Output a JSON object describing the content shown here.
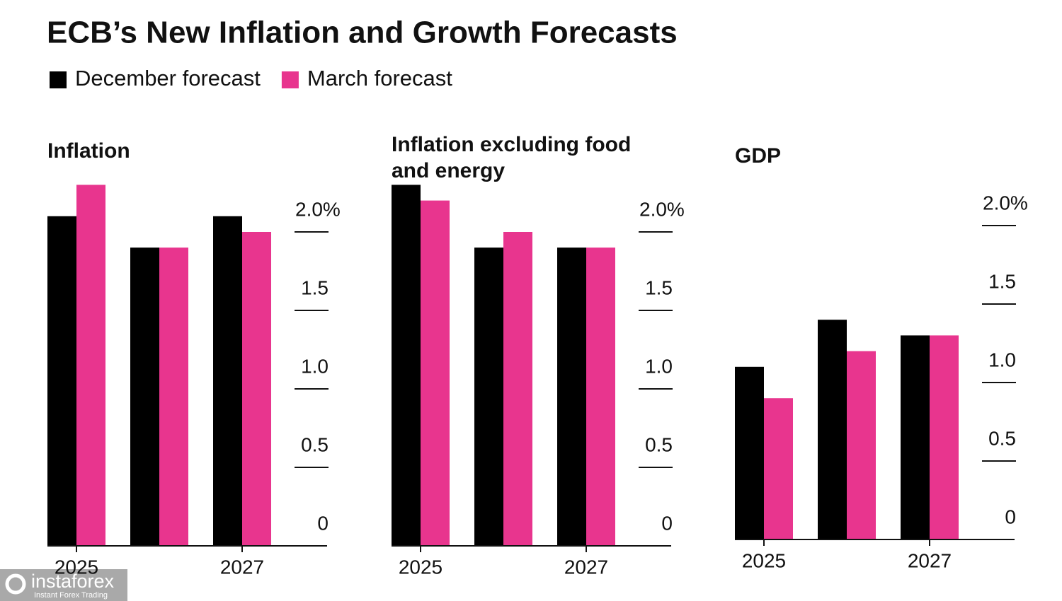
{
  "title": "ECB’s New Inflation and Growth Forecasts",
  "legend": [
    {
      "name": "December forecast",
      "color": "#000000"
    },
    {
      "name": "March forecast",
      "color": "#e8358e"
    }
  ],
  "watermark": {
    "brand": "instaforex",
    "tagline": "Instant Forex Trading"
  },
  "chart_data": [
    {
      "type": "bar",
      "title": "Inflation",
      "categories": [
        "2025",
        null,
        "2027"
      ],
      "series": [
        {
          "values": [
            2.1,
            1.9,
            2.1
          ]
        },
        {
          "values": [
            2.3,
            1.9,
            2.0
          ]
        }
      ],
      "ylim": [
        0,
        2.4
      ],
      "yticks": [
        0,
        0.5,
        {
          "value": 1,
          "label": "1.0"
        },
        1.5,
        {
          "value": 2,
          "label": "2.0%"
        }
      ]
    },
    {
      "type": "bar",
      "title": "Inflation excluding food and energy",
      "categories": [
        "2025",
        null,
        "2027"
      ],
      "series": [
        {
          "values": [
            2.3,
            1.9,
            1.9
          ]
        },
        {
          "values": [
            2.2,
            2.0,
            1.9
          ]
        }
      ],
      "ylim": [
        0,
        2.4
      ],
      "yticks": [
        0,
        0.5,
        {
          "value": 1,
          "label": "1.0"
        },
        1.5,
        {
          "value": 2,
          "label": "2.0%"
        }
      ]
    },
    {
      "type": "bar",
      "title": "GDP",
      "categories": [
        "2025",
        null,
        "2027"
      ],
      "series": [
        {
          "values": [
            1.1,
            1.4,
            1.3
          ]
        },
        {
          "values": [
            0.9,
            1.2,
            1.3
          ]
        }
      ],
      "ylim": [
        0,
        2.4
      ],
      "yticks": [
        0,
        0.5,
        {
          "value": 1,
          "label": "1.0"
        },
        1.5,
        {
          "value": 2,
          "label": "2.0%"
        }
      ]
    }
  ]
}
